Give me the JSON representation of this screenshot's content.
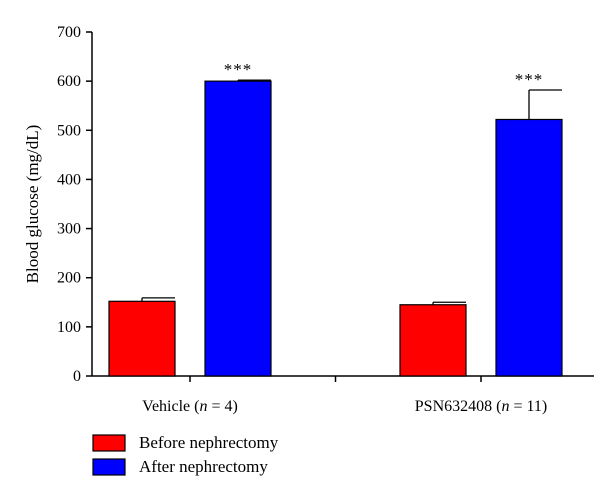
{
  "chart_data": {
    "type": "bar",
    "ylabel": "Blood glucose (mg/dL)",
    "ylim": [
      0,
      700
    ],
    "yticks": [
      0,
      100,
      200,
      300,
      400,
      500,
      600,
      700
    ],
    "grid": false,
    "legend_position": "bottom-left",
    "categories": [
      {
        "prefix": "Vehicle (",
        "n_symbol": "n",
        "suffix": " = 4)"
      },
      {
        "prefix": "PSN632408 (",
        "n_symbol": "n",
        "suffix": " = 11)"
      }
    ],
    "series": [
      {
        "name": "Before nephrectomy",
        "color": "#ff0000",
        "values": [
          152,
          145
        ],
        "errors": [
          7,
          5
        ],
        "significance": [
          "",
          ""
        ]
      },
      {
        "name": "After nephrectomy",
        "color": "#0000ff",
        "values": [
          600,
          522
        ],
        "errors": [
          2,
          60
        ],
        "significance": [
          "***",
          "***"
        ]
      }
    ]
  }
}
